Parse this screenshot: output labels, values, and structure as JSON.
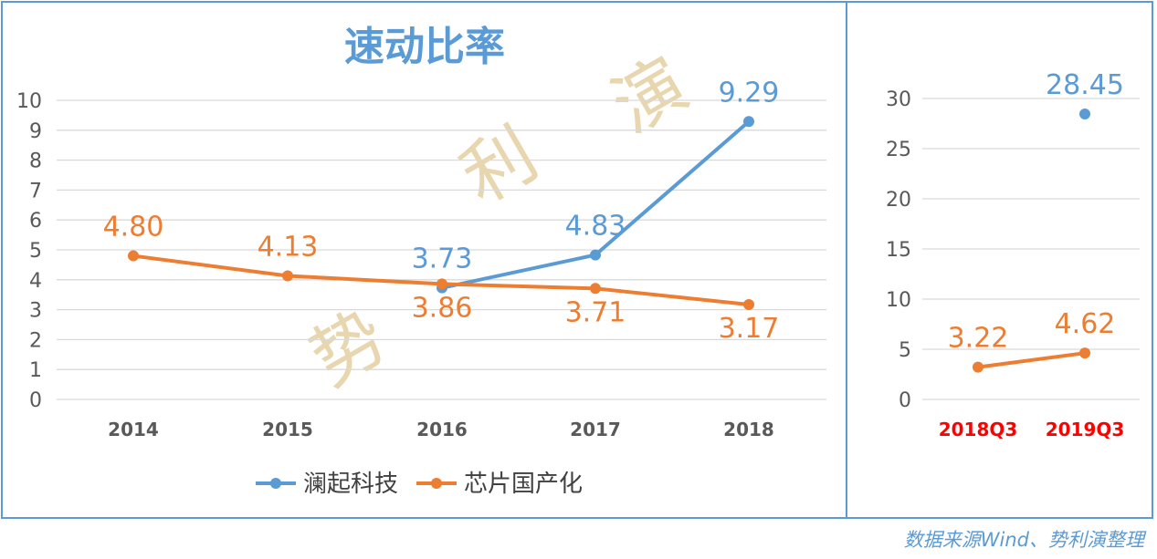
{
  "chart_data": [
    {
      "type": "line",
      "title": "速动比率",
      "categories": [
        "2014",
        "2015",
        "2016",
        "2017",
        "2018"
      ],
      "ylim": [
        0,
        10
      ],
      "yticks": [
        0,
        1,
        2,
        3,
        4,
        5,
        6,
        7,
        8,
        9,
        10
      ],
      "grid": true,
      "legend": "bottom",
      "series": [
        {
          "name": "澜起科技",
          "color": "#5b9bd5",
          "values": [
            null,
            null,
            3.73,
            4.83,
            9.29
          ],
          "labels": [
            "",
            "",
            "3.73",
            "4.83",
            "9.29"
          ]
        },
        {
          "name": "芯片国产化",
          "color": "#ed7d31",
          "values": [
            4.8,
            4.13,
            3.86,
            3.71,
            3.17
          ],
          "labels": [
            "4.80",
            "4.13",
            "3.86",
            "3.71",
            "3.17"
          ]
        }
      ]
    },
    {
      "type": "line",
      "categories": [
        "2018Q3",
        "2019Q3"
      ],
      "category_color": "#ff0000",
      "ylim": [
        0,
        30
      ],
      "yticks": [
        0,
        5,
        10,
        15,
        20,
        25,
        30
      ],
      "grid": true,
      "series": [
        {
          "name": "澜起科技",
          "color": "#5b9bd5",
          "values": [
            null,
            28.45
          ],
          "labels": [
            "",
            "28.45"
          ]
        },
        {
          "name": "芯片国产化",
          "color": "#ed7d31",
          "values": [
            3.22,
            4.62
          ],
          "labels": [
            "3.22",
            "4.62"
          ]
        }
      ]
    }
  ],
  "watermark": "势 利 演",
  "source": "数据来源Wind、势利演整理"
}
